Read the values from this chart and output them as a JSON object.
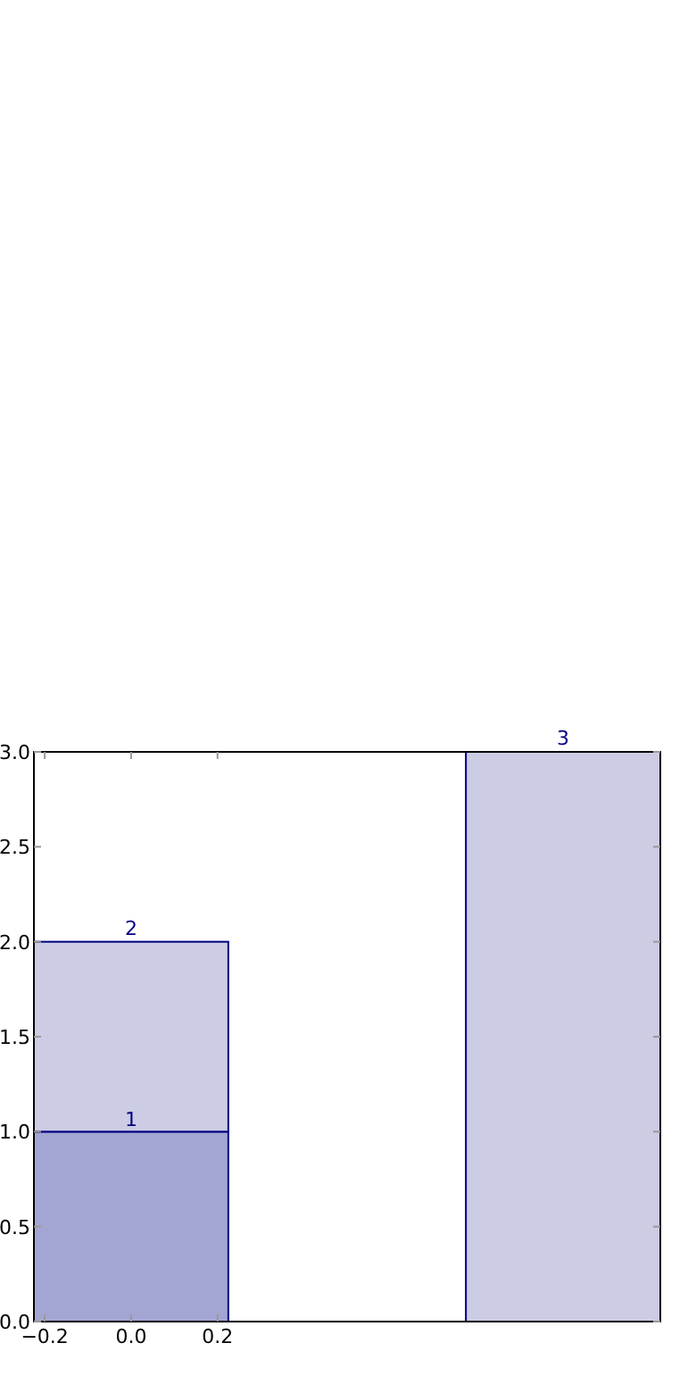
{
  "chart_data": {
    "type": "bar",
    "stacked": true,
    "x": [
      0,
      1
    ],
    "series": [
      {
        "color": "#a3a5d2",
        "values": [
          1,
          null
        ],
        "value_labels": [
          "1",
          null
        ]
      },
      {
        "color": "#cccce4",
        "values": [
          1,
          3
        ]
      }
    ],
    "totals": [
      "2",
      "3"
    ],
    "xlim": [
      -0.225,
      1.225
    ],
    "xticks": [
      {
        "value": -0.2,
        "label": "−0.2"
      },
      {
        "value": 0,
        "label": "0.0"
      },
      {
        "value": 0.2,
        "label": "0.2"
      }
    ],
    "ylim": [
      0,
      3
    ],
    "yticks": [
      {
        "value": 0,
        "label": "0.0"
      },
      {
        "value": 0.5,
        "label": "0.5"
      },
      {
        "value": 1,
        "label": "1.0"
      },
      {
        "value": 1.5,
        "label": "1.5"
      },
      {
        "value": 2,
        "label": "2.0"
      },
      {
        "value": 2.5,
        "label": "2.5"
      },
      {
        "value": 3,
        "label": "3.0"
      }
    ],
    "grid": false
  }
}
